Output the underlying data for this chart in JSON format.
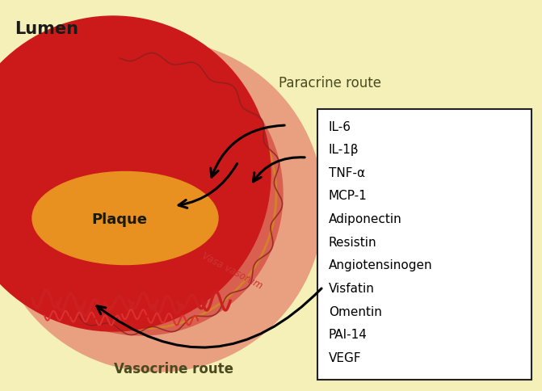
{
  "background_color": "#f5efb8",
  "lumen_color": "#cc1a1a",
  "vessel_wall_color": "#d96050",
  "epicardial_fat_color": "#e8a080",
  "plaque_color": "#e89020",
  "vasa_vasorum_color": "#cc2020",
  "text_color_dark": "#1a1a1a",
  "text_color_label": "#4a4a20",
  "box_bg": "#ffffff",
  "box_border": "#222222",
  "labels": [
    "IL-6",
    "IL-1β",
    "TNF-α",
    "MCP-1",
    "Adiponectin",
    "Resistin",
    "Angiotensinogen",
    "Visfatin",
    "Omentin",
    "PAI-14",
    "VEGF"
  ],
  "lumen_text": "Lumen",
  "plaque_text": "Plaque",
  "paracrine_text": "Paracrine route",
  "vasocrine_text": "Vasocrine route",
  "vasa_vasorum_text": "Vasa vasorum"
}
